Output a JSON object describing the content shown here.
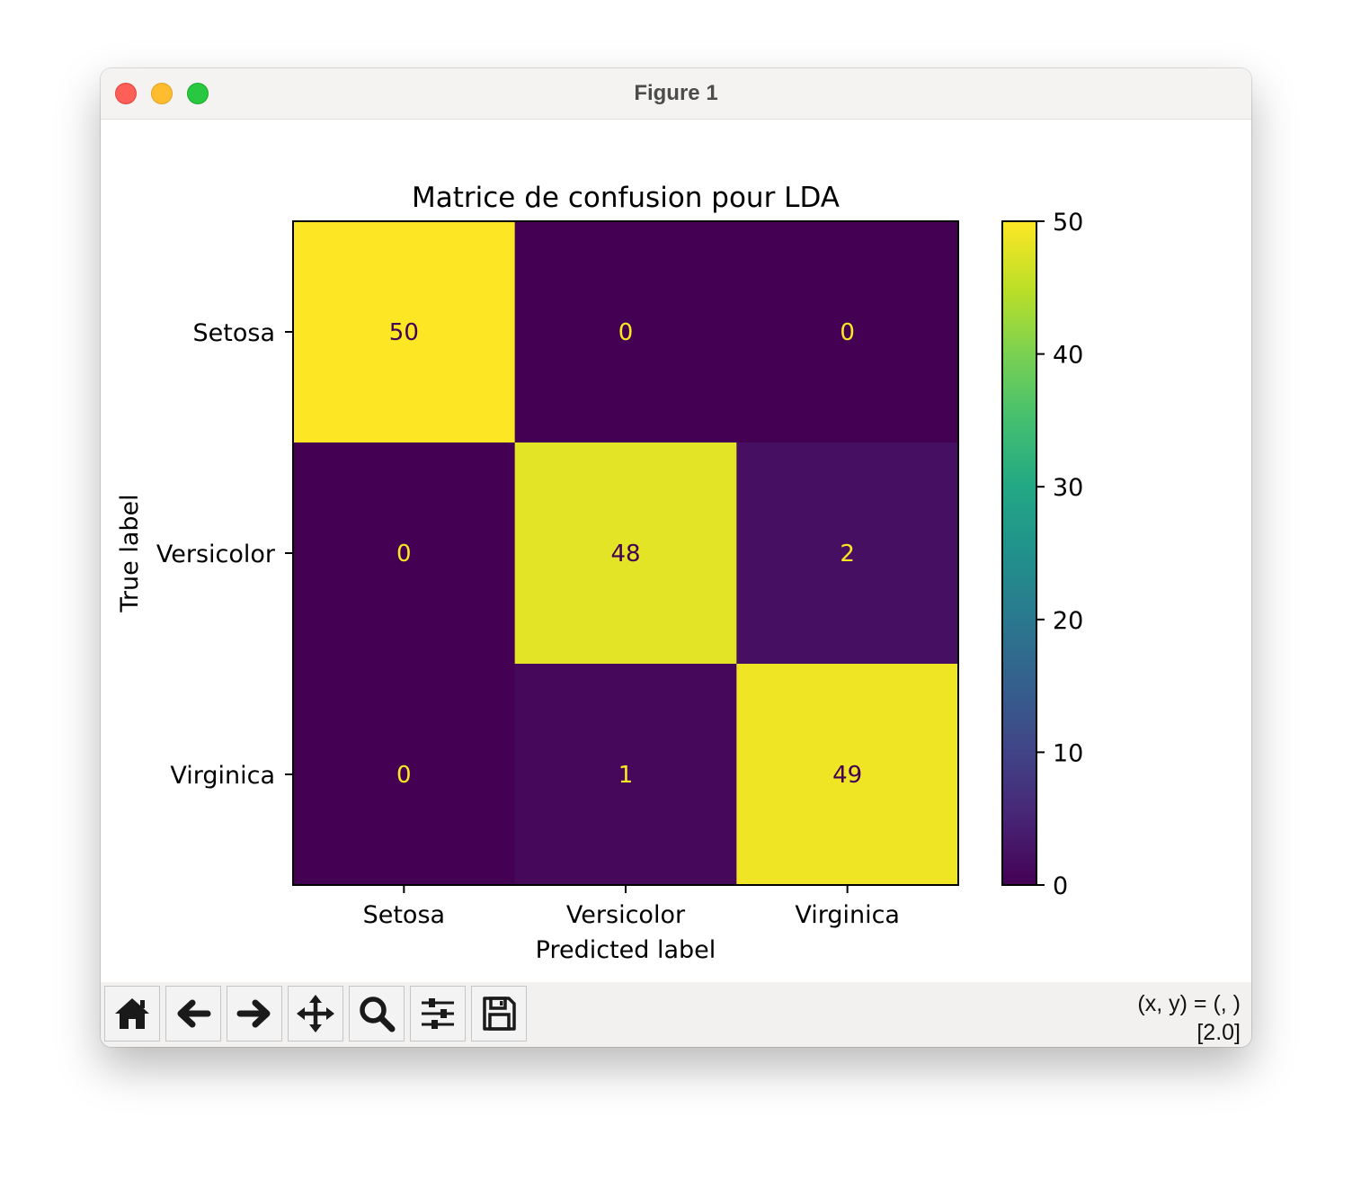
{
  "window": {
    "title": "Figure 1",
    "controls": [
      "close",
      "minimize",
      "zoom"
    ]
  },
  "toolbar": {
    "buttons": [
      {
        "name": "home-button",
        "icon": "home-icon",
        "label": "Home"
      },
      {
        "name": "back-button",
        "icon": "arrow-left-icon",
        "label": "Back"
      },
      {
        "name": "forward-button",
        "icon": "arrow-right-icon",
        "label": "Forward"
      },
      {
        "name": "pan-button",
        "icon": "move-icon",
        "label": "Pan"
      },
      {
        "name": "zoom-button",
        "icon": "magnifier-icon",
        "label": "Zoom"
      },
      {
        "name": "configure-subplots-button",
        "icon": "sliders-icon",
        "label": "Subplots"
      },
      {
        "name": "save-button",
        "icon": "floppy-disk-icon",
        "label": "Save"
      }
    ],
    "coords_line1": "(x, y) = (, )",
    "coords_line2": "[2.0]"
  },
  "chart_data": {
    "type": "heatmap",
    "title": "Matrice de confusion pour LDA",
    "xlabel": "Predicted label",
    "ylabel": "True label",
    "x_categories": [
      "Setosa",
      "Versicolor",
      "Virginica"
    ],
    "y_categories": [
      "Setosa",
      "Versicolor",
      "Virginica"
    ],
    "values": [
      [
        50,
        0,
        0
      ],
      [
        0,
        48,
        2
      ],
      [
        0,
        1,
        49
      ]
    ],
    "colormap": "viridis",
    "colorbar": {
      "range": [
        0,
        50
      ],
      "ticks": [
        0,
        10,
        20,
        30,
        40,
        50
      ]
    },
    "text_colors": {
      "dark_cell": "#fde725",
      "bright_cell": "#440154"
    }
  }
}
